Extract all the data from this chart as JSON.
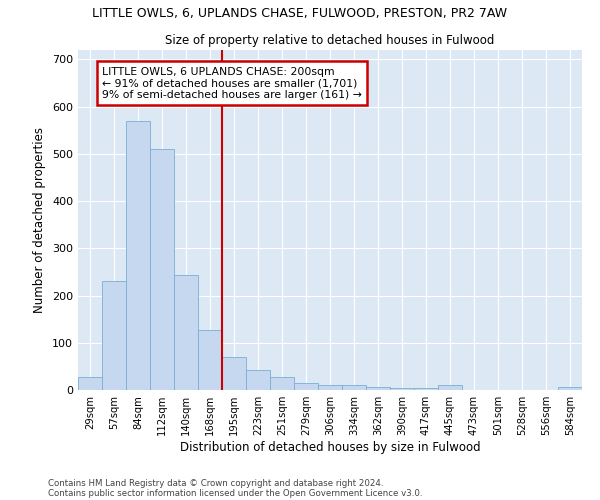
{
  "title_line1": "LITTLE OWLS, 6, UPLANDS CHASE, FULWOOD, PRESTON, PR2 7AW",
  "title_line2": "Size of property relative to detached houses in Fulwood",
  "xlabel": "Distribution of detached houses by size in Fulwood",
  "ylabel": "Number of detached properties",
  "categories": [
    "29sqm",
    "57sqm",
    "84sqm",
    "112sqm",
    "140sqm",
    "168sqm",
    "195sqm",
    "223sqm",
    "251sqm",
    "279sqm",
    "306sqm",
    "334sqm",
    "362sqm",
    "390sqm",
    "417sqm",
    "445sqm",
    "473sqm",
    "501sqm",
    "528sqm",
    "556sqm",
    "584sqm"
  ],
  "values": [
    27,
    230,
    570,
    510,
    243,
    128,
    70,
    42,
    27,
    15,
    10,
    10,
    7,
    5,
    5,
    10,
    0,
    0,
    0,
    0,
    7
  ],
  "bar_color": "#c5d8ef",
  "bar_edge_color": "#7aaed4",
  "vline_x_index": 6,
  "vline_color": "#cc0000",
  "annotation_text": "LITTLE OWLS, 6 UPLANDS CHASE: 200sqm\n← 91% of detached houses are smaller (1,701)\n9% of semi-detached houses are larger (161) →",
  "annotation_box_color": "#ffffff",
  "annotation_box_edge": "#cc0000",
  "ylim": [
    0,
    720
  ],
  "yticks": [
    0,
    100,
    200,
    300,
    400,
    500,
    600,
    700
  ],
  "background_color": "#dde8f5",
  "grid_color": "#ffffff",
  "footnote1": "Contains HM Land Registry data © Crown copyright and database right 2024.",
  "footnote2": "Contains public sector information licensed under the Open Government Licence v3.0."
}
